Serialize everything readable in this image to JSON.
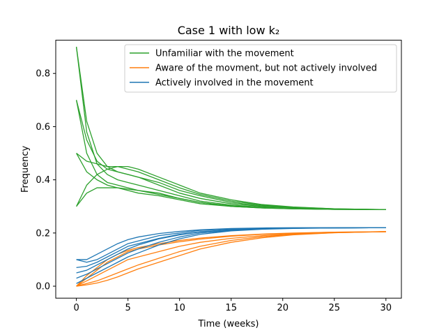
{
  "chart_data": {
    "type": "line",
    "title": "Case 1 with low k₂",
    "xlabel": "Time (weeks)",
    "ylabel": "Frequency",
    "xlim": [
      -2,
      31.5
    ],
    "ylim": [
      -0.045,
      0.925
    ],
    "xticks": [
      0,
      5,
      10,
      15,
      20,
      25,
      30
    ],
    "yticks": [
      0.0,
      0.2,
      0.4,
      0.6,
      0.8
    ],
    "xtick_labels": [
      "0",
      "5",
      "10",
      "15",
      "20",
      "25",
      "30"
    ],
    "ytick_labels": [
      "0.0",
      "0.2",
      "0.4",
      "0.6",
      "0.8"
    ],
    "grid": false,
    "legend_position": "top-right",
    "x": [
      0,
      1,
      2,
      3,
      4,
      5,
      6,
      8,
      10,
      12,
      15,
      18,
      21,
      25,
      30
    ],
    "colors": {
      "unfamiliar": "#2ca02c",
      "aware": "#ff7f0e",
      "involved": "#1f77b4"
    },
    "series": [
      {
        "name": "Unfamiliar with the movement",
        "group": "unfamiliar",
        "values": [
          0.9,
          0.62,
          0.5,
          0.45,
          0.43,
          0.42,
          0.41,
          0.38,
          0.35,
          0.33,
          0.31,
          0.3,
          0.295,
          0.29,
          0.288
        ]
      },
      {
        "name": "Aware of the movment, but not actively involved",
        "group": "aware",
        "values": [
          0.0,
          0.02,
          0.04,
          0.06,
          0.08,
          0.1,
          0.11,
          0.13,
          0.15,
          0.165,
          0.18,
          0.19,
          0.197,
          0.202,
          0.205
        ]
      },
      {
        "name": "Actively involved in the movement",
        "group": "involved",
        "values": [
          0.1,
          0.09,
          0.1,
          0.12,
          0.14,
          0.16,
          0.17,
          0.19,
          0.2,
          0.21,
          0.215,
          0.218,
          0.219,
          0.22,
          0.22
        ]
      },
      {
        "group": "unfamiliar",
        "values": [
          0.9,
          0.58,
          0.46,
          0.42,
          0.4,
          0.39,
          0.38,
          0.36,
          0.34,
          0.32,
          0.305,
          0.297,
          0.292,
          0.289,
          0.288
        ]
      },
      {
        "group": "unfamiliar",
        "values": [
          0.7,
          0.55,
          0.47,
          0.44,
          0.43,
          0.42,
          0.41,
          0.39,
          0.36,
          0.34,
          0.315,
          0.302,
          0.295,
          0.29,
          0.288
        ]
      },
      {
        "group": "unfamiliar",
        "values": [
          0.7,
          0.5,
          0.42,
          0.39,
          0.38,
          0.37,
          0.36,
          0.35,
          0.33,
          0.315,
          0.3,
          0.294,
          0.291,
          0.289,
          0.288
        ]
      },
      {
        "group": "unfamiliar",
        "values": [
          0.5,
          0.47,
          0.46,
          0.45,
          0.45,
          0.44,
          0.43,
          0.4,
          0.37,
          0.345,
          0.32,
          0.305,
          0.297,
          0.291,
          0.288
        ]
      },
      {
        "group": "unfamiliar",
        "values": [
          0.5,
          0.43,
          0.4,
          0.38,
          0.37,
          0.36,
          0.35,
          0.34,
          0.325,
          0.31,
          0.3,
          0.294,
          0.291,
          0.289,
          0.288
        ]
      },
      {
        "group": "unfamiliar",
        "values": [
          0.3,
          0.38,
          0.42,
          0.44,
          0.45,
          0.45,
          0.44,
          0.41,
          0.38,
          0.35,
          0.325,
          0.307,
          0.298,
          0.291,
          0.288
        ]
      },
      {
        "group": "unfamiliar",
        "values": [
          0.3,
          0.35,
          0.37,
          0.37,
          0.37,
          0.365,
          0.36,
          0.345,
          0.33,
          0.315,
          0.302,
          0.295,
          0.292,
          0.289,
          0.288
        ]
      },
      {
        "group": "aware",
        "values": [
          0.0,
          0.03,
          0.06,
          0.09,
          0.11,
          0.13,
          0.14,
          0.155,
          0.167,
          0.177,
          0.188,
          0.195,
          0.199,
          0.203,
          0.205
        ]
      },
      {
        "group": "aware",
        "values": [
          0.0,
          0.01,
          0.02,
          0.035,
          0.05,
          0.065,
          0.08,
          0.105,
          0.13,
          0.15,
          0.172,
          0.186,
          0.195,
          0.201,
          0.205
        ]
      },
      {
        "group": "aware",
        "values": [
          0.0,
          0.04,
          0.07,
          0.1,
          0.12,
          0.135,
          0.145,
          0.16,
          0.172,
          0.181,
          0.19,
          0.196,
          0.2,
          0.203,
          0.205
        ]
      },
      {
        "group": "aware",
        "values": [
          0.0,
          0.005,
          0.012,
          0.022,
          0.035,
          0.05,
          0.065,
          0.09,
          0.115,
          0.14,
          0.165,
          0.182,
          0.193,
          0.201,
          0.205
        ]
      },
      {
        "group": "involved",
        "values": [
          0.1,
          0.1,
          0.12,
          0.14,
          0.16,
          0.175,
          0.185,
          0.198,
          0.206,
          0.212,
          0.217,
          0.219,
          0.22,
          0.22,
          0.22
        ]
      },
      {
        "group": "involved",
        "values": [
          0.07,
          0.075,
          0.09,
          0.11,
          0.13,
          0.15,
          0.16,
          0.18,
          0.195,
          0.205,
          0.212,
          0.216,
          0.218,
          0.219,
          0.22
        ]
      },
      {
        "group": "involved",
        "values": [
          0.05,
          0.06,
          0.08,
          0.1,
          0.12,
          0.14,
          0.155,
          0.178,
          0.193,
          0.204,
          0.212,
          0.216,
          0.218,
          0.219,
          0.22
        ]
      },
      {
        "group": "involved",
        "values": [
          0.03,
          0.045,
          0.065,
          0.085,
          0.105,
          0.125,
          0.14,
          0.165,
          0.185,
          0.2,
          0.21,
          0.215,
          0.218,
          0.219,
          0.22
        ]
      },
      {
        "group": "involved",
        "values": [
          0.01,
          0.03,
          0.05,
          0.07,
          0.09,
          0.11,
          0.125,
          0.155,
          0.178,
          0.195,
          0.208,
          0.214,
          0.217,
          0.219,
          0.22
        ]
      }
    ]
  }
}
